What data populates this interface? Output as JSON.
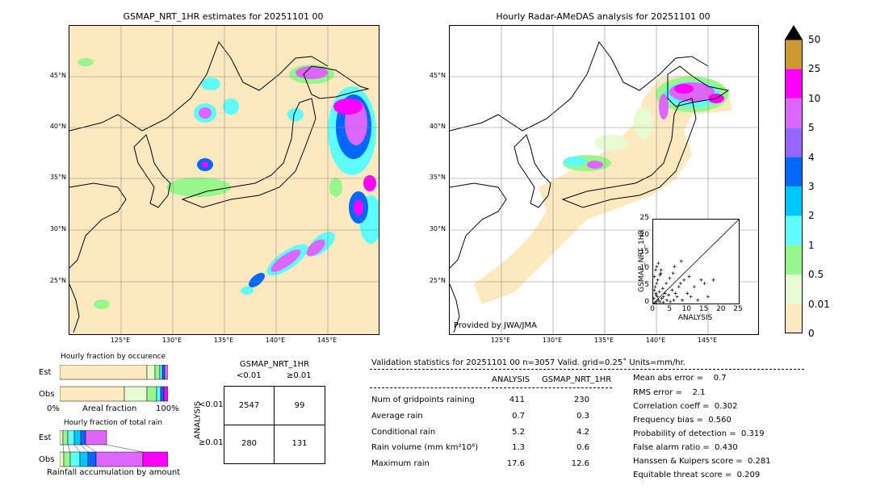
{
  "left_map": {
    "title": "GSMAP_NRT_1HR estimates for 20251101 00",
    "lon_labels": [
      "125°E",
      "130°E",
      "135°E",
      "140°E",
      "145°E"
    ],
    "lat_labels": [
      "45°N",
      "40°N",
      "35°N",
      "30°N",
      "25°N"
    ]
  },
  "right_map": {
    "title": "Hourly Radar-AMeDAS analysis for 20251101 00",
    "provided_by": "Provided by JWA/JMA",
    "lon_labels": [
      "125°E",
      "130°E",
      "135°E",
      "140°E",
      "145°E"
    ],
    "lat_labels": [
      "45°N",
      "40°N",
      "35°N",
      "30°N",
      "25°N"
    ]
  },
  "colorbar": {
    "labels": [
      "0",
      "0.01",
      "0.5",
      "1",
      "2",
      "3",
      "4",
      "5",
      "10",
      "25",
      "50"
    ],
    "colors": [
      "#fde9c0",
      "#e8fbd0",
      "#98f78c",
      "#5efefe",
      "#00c8ff",
      "#0068ff",
      "#9866ff",
      "#dd66ff",
      "#ff00ff",
      "#cc9933"
    ]
  },
  "fraction_occurrence": {
    "title": "Hourly fraction by occurence",
    "rows": [
      "Est",
      "Obs"
    ],
    "axis_left": "0%",
    "axis_mid": "Areal fraction",
    "axis_right": "100%"
  },
  "fraction_total": {
    "title": "Hourly fraction of total rain",
    "rows": [
      "Est",
      "Obs"
    ],
    "caption": "Rainfall accumulation by amount"
  },
  "contingency": {
    "title": "GSMAP_NRT_1HR",
    "col_labels": [
      "<0.01",
      "≥0.01"
    ],
    "row_axis": "ANALYSIS",
    "row_labels": [
      "<0.01",
      "≥0.01"
    ],
    "cells": [
      [
        "2547",
        "99"
      ],
      [
        "280",
        "131"
      ]
    ]
  },
  "validation": {
    "header": "Validation statistics for 20251101 00  n=3057 Valid. grid=0.25˚ Units=mm/hr.",
    "col_analysis": "ANALYSIS",
    "col_gsmap": "GSMAP_NRT_1HR",
    "rows": [
      {
        "label": "Num of gridpoints raining",
        "analysis": "411",
        "gsmap": "230"
      },
      {
        "label": "Average rain",
        "analysis": "0.7",
        "gsmap": "0.3"
      },
      {
        "label": "Conditional rain",
        "analysis": "5.2",
        "gsmap": "4.2"
      },
      {
        "label": "Rain volume (mm km²10⁶)",
        "analysis": "1.3",
        "gsmap": "0.6"
      },
      {
        "label": "Maximum rain",
        "analysis": "17.6",
        "gsmap": "12.6"
      }
    ],
    "scores": [
      "Mean abs error =    0.7",
      "RMS error =    2.1",
      "Correlation coeff =  0.302",
      "Frequency bias =  0.560",
      "Probability of detection =  0.319",
      "False alarm ratio =  0.430",
      "Hanssen & Kuipers score =  0.281",
      "Equitable threat score =  0.209"
    ]
  },
  "chart_data": {
    "type": "scatter",
    "xlabel": "ANALYSIS",
    "ylabel": "GSMAP_NRT_1HR",
    "xlim": [
      0,
      25
    ],
    "ylim": [
      0,
      25
    ],
    "ticks": [
      "0",
      "5",
      "10",
      "15",
      "20",
      "25"
    ],
    "points": [
      [
        0.5,
        0.2
      ],
      [
        1,
        0.5
      ],
      [
        1.2,
        2
      ],
      [
        0.8,
        3
      ],
      [
        1.5,
        1
      ],
      [
        2,
        0.5
      ],
      [
        2.5,
        1.5
      ],
      [
        3,
        0.3
      ],
      [
        0.3,
        4
      ],
      [
        0.6,
        5
      ],
      [
        1,
        6
      ],
      [
        1.3,
        7
      ],
      [
        0.4,
        8
      ],
      [
        2,
        8.5
      ],
      [
        2.2,
        9
      ],
      [
        0.7,
        10
      ],
      [
        1,
        11
      ],
      [
        1.5,
        12
      ],
      [
        3,
        2
      ],
      [
        3.5,
        3
      ],
      [
        4,
        1
      ],
      [
        4.5,
        2.5
      ],
      [
        5,
        0.5
      ],
      [
        5.5,
        4
      ],
      [
        6,
        1
      ],
      [
        6.5,
        3
      ],
      [
        7,
        2
      ],
      [
        7.5,
        5
      ],
      [
        8,
        6
      ],
      [
        8.5,
        1
      ],
      [
        9,
        7
      ],
      [
        10,
        3
      ],
      [
        10.5,
        8
      ],
      [
        11,
        2
      ],
      [
        12,
        5
      ],
      [
        13,
        1
      ],
      [
        14,
        7
      ],
      [
        15,
        6
      ],
      [
        16,
        2
      ],
      [
        17.6,
        7
      ],
      [
        0.2,
        1.5
      ],
      [
        0.9,
        2.5
      ],
      [
        1.8,
        3.5
      ],
      [
        2.8,
        4.5
      ],
      [
        3.8,
        6
      ],
      [
        4.8,
        7.5
      ],
      [
        5.8,
        9
      ],
      [
        2.3,
        10
      ],
      [
        6.2,
        11
      ],
      [
        8.2,
        12.6
      ]
    ]
  }
}
